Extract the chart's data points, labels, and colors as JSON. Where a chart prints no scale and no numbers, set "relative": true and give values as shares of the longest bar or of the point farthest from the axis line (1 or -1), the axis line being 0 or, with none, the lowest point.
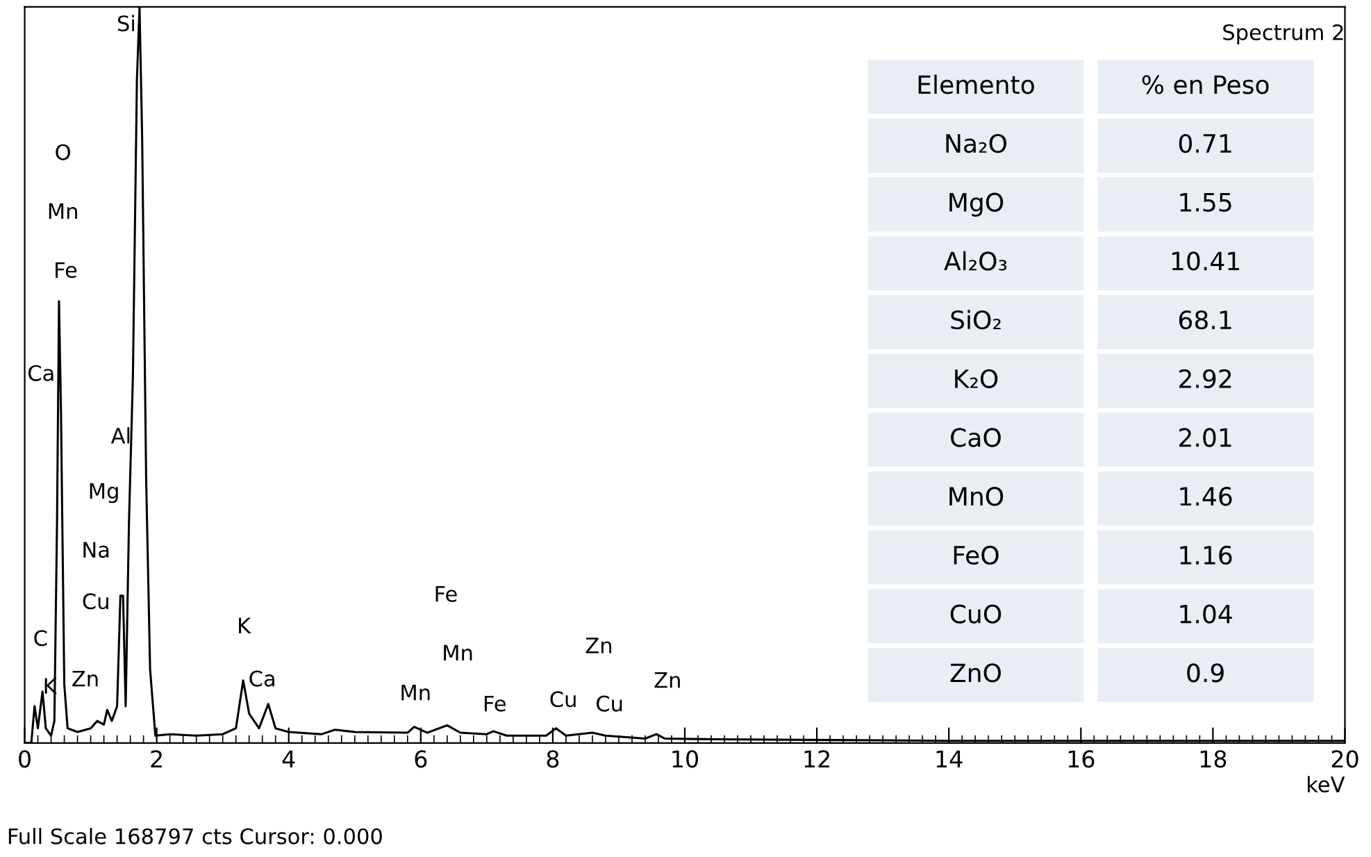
{
  "chart_data": [
    {
      "type": "line",
      "title": "Spectrum 2",
      "xlabel": "keV",
      "relative": true,
      "color": "#000000",
      "x": [
        0,
        0.1,
        0.15,
        0.2,
        0.27,
        0.32,
        0.4,
        0.45,
        0.49,
        0.52,
        0.55,
        0.57,
        0.6,
        0.65,
        0.8,
        1.0,
        1.1,
        1.2,
        1.25,
        1.32,
        1.4,
        1.45,
        1.49,
        1.53,
        1.58,
        1.64,
        1.7,
        1.74,
        1.78,
        1.84,
        1.9,
        1.98,
        2.2,
        2.6,
        3.0,
        3.2,
        3.31,
        3.4,
        3.55,
        3.69,
        3.8,
        4.0,
        4.5,
        4.7,
        5.0,
        5.8,
        5.9,
        6.1,
        6.4,
        6.6,
        7.0,
        7.1,
        7.3,
        7.9,
        8.05,
        8.2,
        8.6,
        8.8,
        9.4,
        9.57,
        9.7,
        10.5,
        12.3,
        14,
        20
      ],
      "values": [
        0,
        0,
        0.05,
        0.02,
        0.07,
        0.02,
        0.01,
        0.03,
        0.3,
        0.6,
        0.45,
        0.3,
        0.08,
        0.02,
        0.015,
        0.02,
        0.03,
        0.025,
        0.045,
        0.03,
        0.05,
        0.2,
        0.2,
        0.05,
        0.3,
        0.5,
        0.9,
        1.0,
        0.82,
        0.36,
        0.1,
        0.01,
        0.012,
        0.01,
        0.012,
        0.02,
        0.085,
        0.04,
        0.02,
        0.053,
        0.02,
        0.015,
        0.012,
        0.018,
        0.015,
        0.014,
        0.022,
        0.014,
        0.024,
        0.014,
        0.012,
        0.016,
        0.01,
        0.01,
        0.02,
        0.01,
        0.014,
        0.01,
        0.006,
        0.012,
        0.006,
        0.005,
        0.004,
        0.003,
        0.003
      ],
      "xlim": [
        0,
        20
      ],
      "xticks": [
        0,
        2,
        4,
        6,
        8,
        10,
        12,
        14,
        16,
        18,
        20
      ],
      "annotations": [
        "Full Scale 168797 cts Cursor: 0.000",
        "Si",
        "O",
        "Mn",
        "Fe",
        "Ca",
        "Al",
        "Mg",
        "Na",
        "Cu",
        "C",
        "K",
        "Zn",
        "K",
        "Ca",
        "Fe",
        "Mn",
        "Mn",
        "Fe",
        "Cu",
        "Zn",
        "Cu",
        "Zn"
      ]
    },
    {
      "type": "other",
      "data_labels": true,
      "color": "#e9edf4",
      "annotations": [
        "Elemento",
        "% en Peso"
      ],
      "categories": [
        "Na₂O",
        "MgO",
        "Al₂O₃",
        "SiO₂",
        "K₂O",
        "CaO",
        "MnO",
        "FeO",
        "CuO",
        "ZnO"
      ],
      "values": [
        0.71,
        1.55,
        10.41,
        68.1,
        2.92,
        2.01,
        1.46,
        1.16,
        1.04,
        0.9
      ]
    }
  ]
}
